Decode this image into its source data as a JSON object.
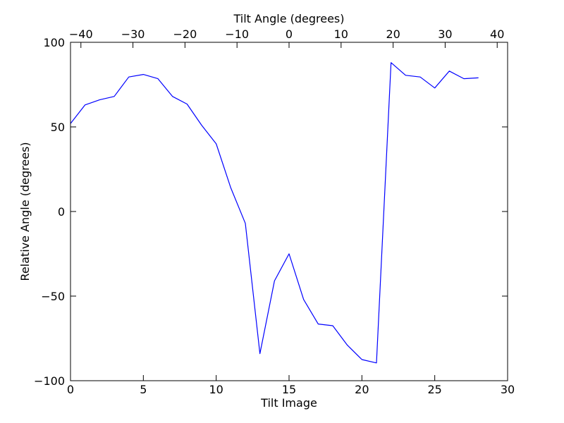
{
  "chart_data": {
    "type": "line",
    "xlabel": "Tilt Image",
    "ylabel": "Relative Angle (degrees)",
    "top_xlabel": "Tilt Angle (degrees)",
    "xlim": [
      0,
      30
    ],
    "ylim": [
      -100,
      100
    ],
    "top_xlim": [
      -42,
      42
    ],
    "x_ticks": [
      0,
      5,
      10,
      15,
      20,
      25,
      30
    ],
    "y_ticks": [
      -100,
      -50,
      0,
      50,
      100
    ],
    "top_x_ticks": [
      -40,
      -30,
      -20,
      -10,
      0,
      10,
      20,
      30,
      40
    ],
    "x_tick_labels": [
      "0",
      "5",
      "10",
      "15",
      "20",
      "25",
      "30"
    ],
    "y_tick_labels": [
      "−100",
      "−50",
      "0",
      "50",
      "100"
    ],
    "top_x_tick_labels": [
      "−40",
      "−30",
      "−20",
      "−10",
      "0",
      "10",
      "20",
      "30",
      "40"
    ],
    "grid": false,
    "series": [
      {
        "color": "#0000ff",
        "x": [
          0,
          1,
          2,
          3,
          4,
          5,
          6,
          7,
          8,
          9,
          10,
          11,
          12,
          13,
          14,
          15,
          16,
          17,
          18,
          19,
          20,
          21,
          22,
          23,
          24,
          25,
          26,
          27,
          28
        ],
        "y": [
          52,
          63,
          66,
          68,
          79.5,
          81,
          78.5,
          68,
          63.5,
          51,
          40,
          14,
          -7,
          -84,
          -41,
          -25,
          -52,
          -66.5,
          -67.5,
          -79,
          -87.5,
          -89.5,
          88,
          80.5,
          79.5,
          73,
          83,
          78.5,
          79
        ]
      }
    ]
  }
}
